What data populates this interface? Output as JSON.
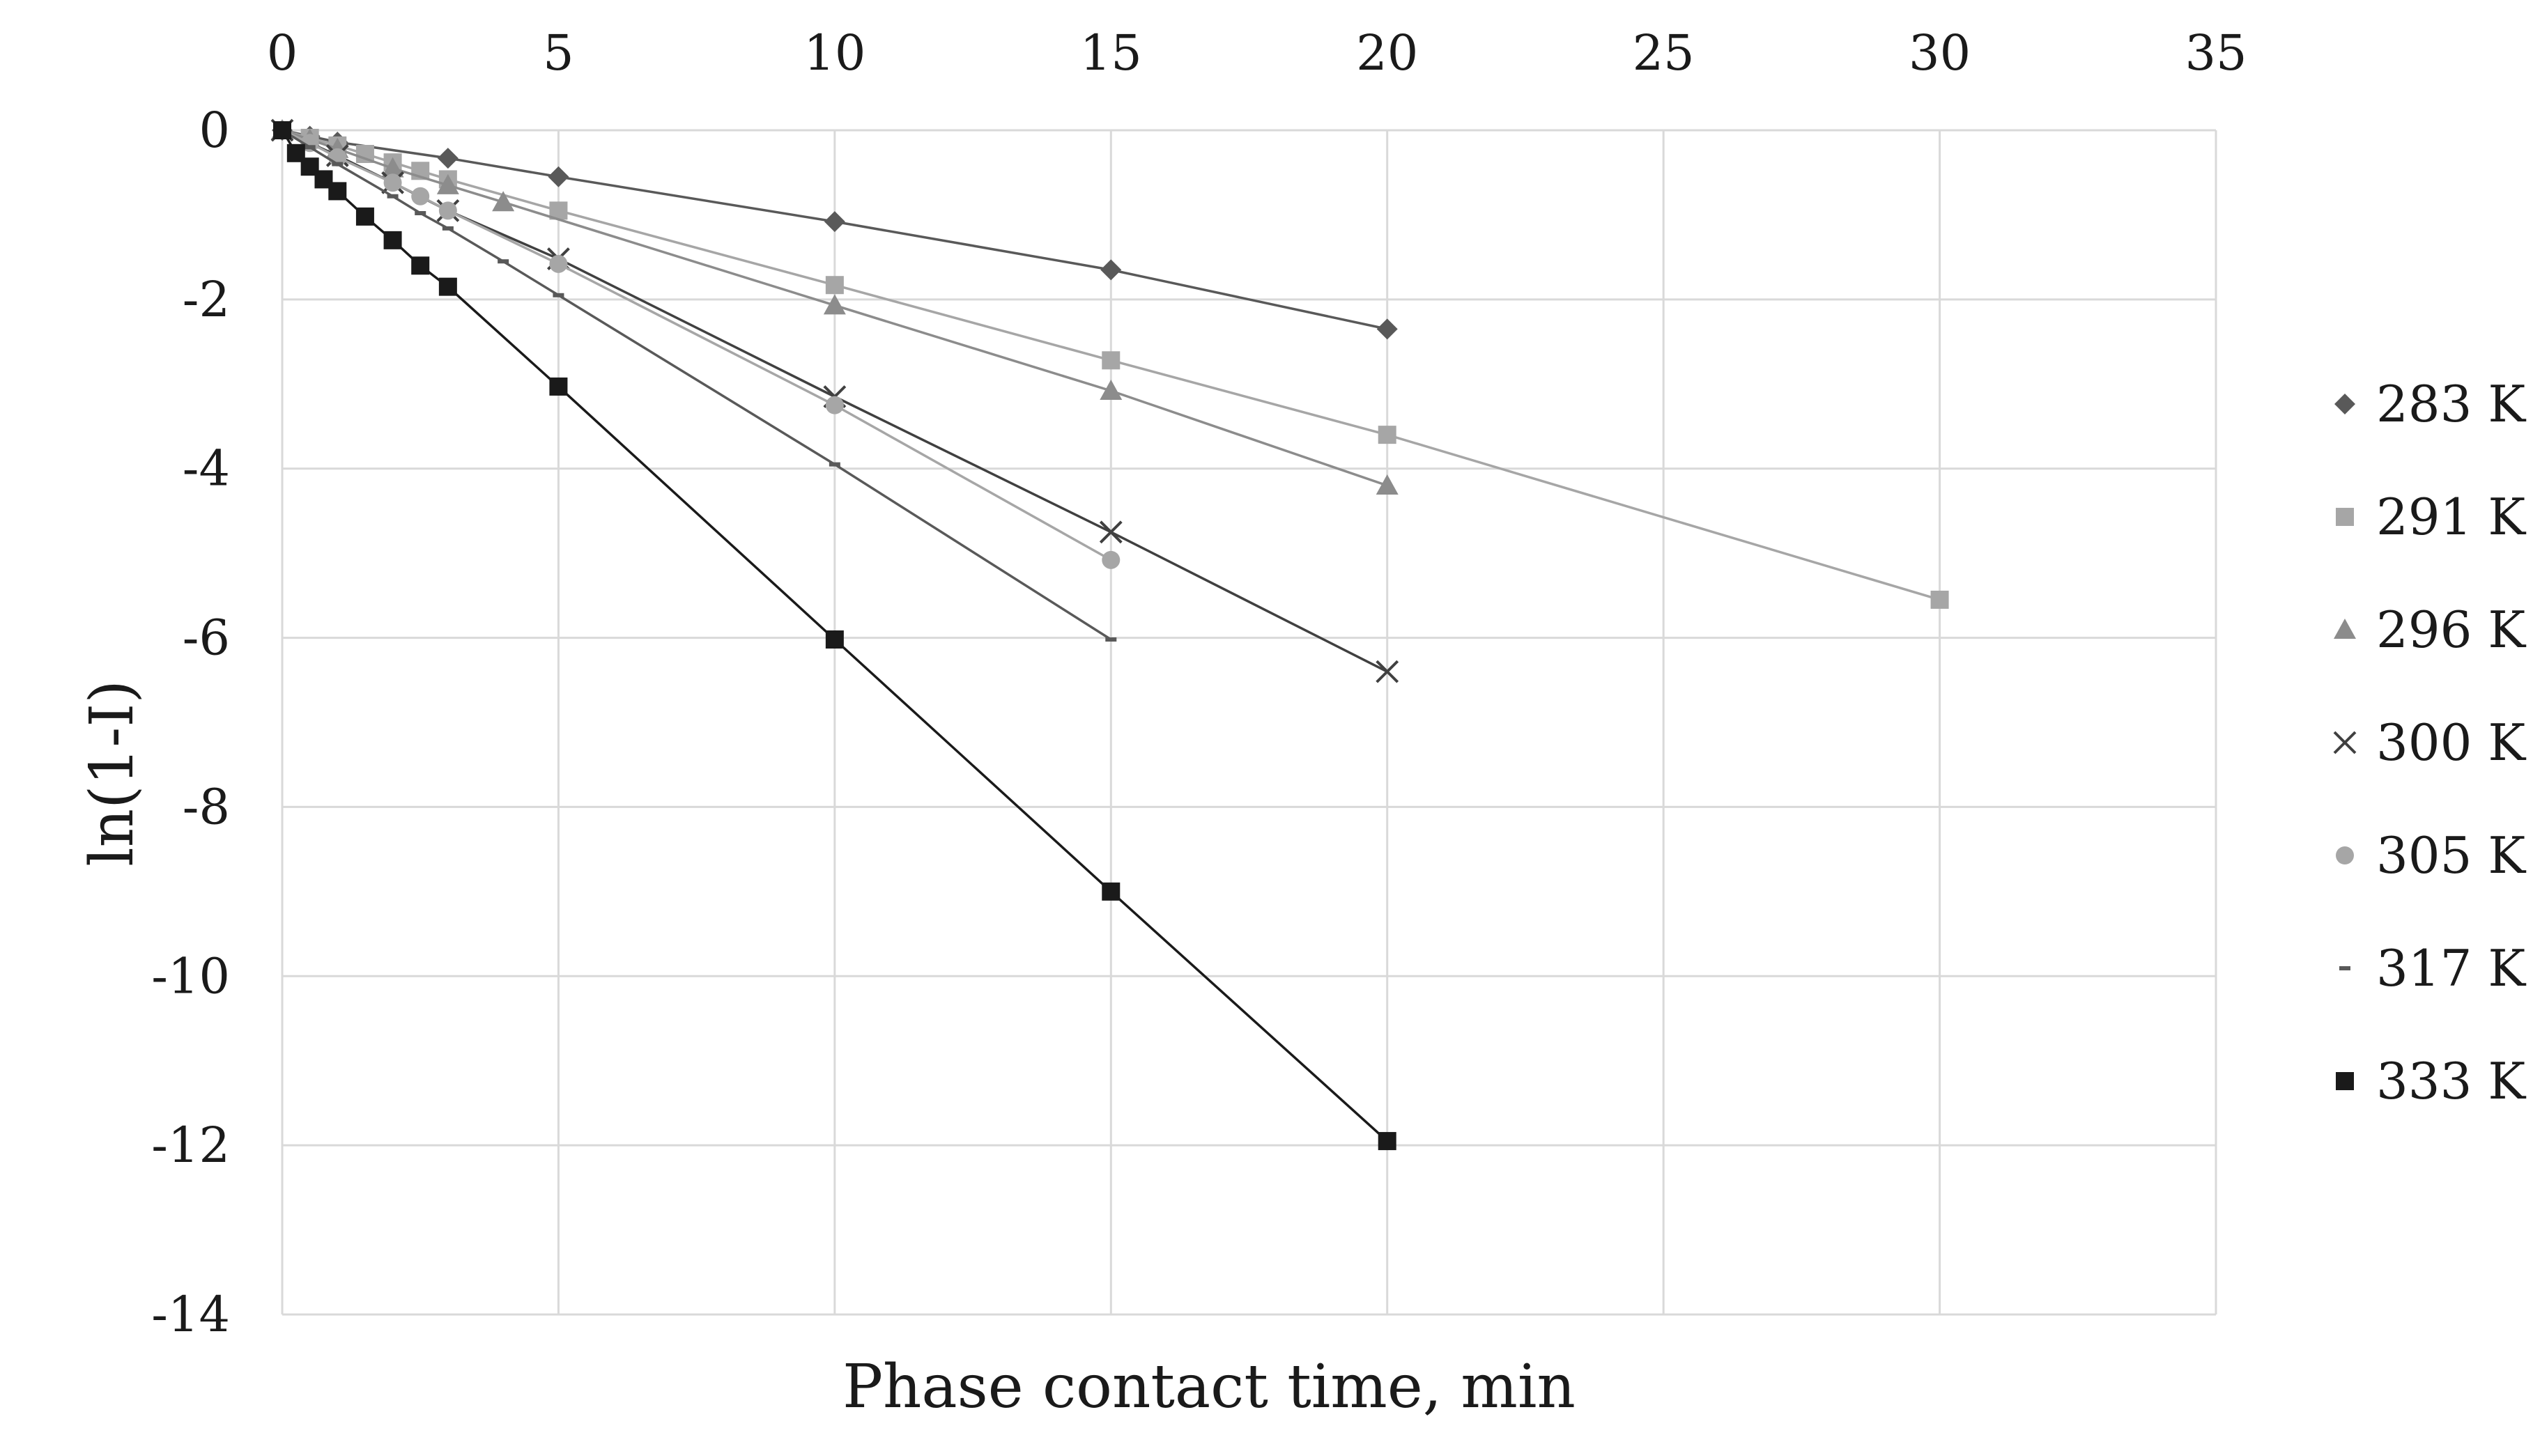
{
  "chart_data": {
    "type": "line",
    "title": "",
    "xlabel": "Phase contact time, min",
    "ylabel": "ln(1-I)",
    "xlim": [
      0,
      35
    ],
    "ylim": [
      -14,
      0
    ],
    "xticks": [
      0,
      5,
      10,
      15,
      20,
      25,
      30,
      35
    ],
    "yticks": [
      0,
      -2,
      -4,
      -6,
      -8,
      -10,
      -12,
      -14
    ],
    "x_axis_position": "top",
    "grid": true,
    "legend_position": "right",
    "series": [
      {
        "name": "283 K",
        "marker": "diamond",
        "color": "#595959",
        "x": [
          0,
          0.5,
          1,
          3,
          5,
          10,
          15,
          20
        ],
        "y": [
          0,
          -0.07,
          -0.14,
          -0.33,
          -0.55,
          -1.08,
          -1.65,
          -2.35
        ]
      },
      {
        "name": "291 K",
        "marker": "square",
        "color": "#a6a6a6",
        "x": [
          0,
          0.5,
          1,
          1.5,
          2,
          2.5,
          3,
          5,
          10,
          15,
          20,
          30
        ],
        "y": [
          0,
          -0.09,
          -0.18,
          -0.28,
          -0.38,
          -0.48,
          -0.58,
          -0.95,
          -1.83,
          -2.72,
          -3.6,
          -5.55
        ]
      },
      {
        "name": "296 K",
        "marker": "triangle",
        "color": "#8c8c8c",
        "x": [
          0,
          0.5,
          1,
          2,
          3,
          4,
          10,
          15,
          20
        ],
        "y": [
          0,
          -0.11,
          -0.22,
          -0.45,
          -0.65,
          -0.85,
          -2.07,
          -3.08,
          -4.2
        ]
      },
      {
        "name": "300 K",
        "marker": "x",
        "color": "#404040",
        "x": [
          0,
          1,
          2,
          3,
          5,
          10,
          15,
          20
        ],
        "y": [
          0,
          -0.3,
          -0.62,
          -0.95,
          -1.52,
          -3.15,
          -4.75,
          -6.4
        ]
      },
      {
        "name": "305 K",
        "marker": "circle",
        "color": "#a6a6a6",
        "x": [
          0,
          0.5,
          1,
          2,
          2.5,
          3,
          5,
          10,
          15
        ],
        "y": [
          0,
          -0.15,
          -0.32,
          -0.62,
          -0.78,
          -0.95,
          -1.58,
          -3.25,
          -5.08
        ]
      },
      {
        "name": "317 K",
        "marker": "dash",
        "color": "#595959",
        "x": [
          0,
          0.5,
          1,
          2,
          2.5,
          3,
          4,
          5,
          10,
          15
        ],
        "y": [
          0,
          -0.2,
          -0.4,
          -0.78,
          -0.98,
          -1.16,
          -1.55,
          -1.95,
          -3.95,
          -6.02
        ]
      },
      {
        "name": "333 K",
        "marker": "square",
        "color": "#1a1a1a",
        "x": [
          0,
          0.25,
          0.5,
          0.75,
          1,
          1.5,
          2,
          2.5,
          3,
          5,
          10,
          15,
          20
        ],
        "y": [
          0,
          -0.27,
          -0.43,
          -0.58,
          -0.72,
          -1.02,
          -1.3,
          -1.6,
          -1.85,
          -3.03,
          -6.02,
          -9.0,
          -11.95
        ]
      }
    ]
  }
}
